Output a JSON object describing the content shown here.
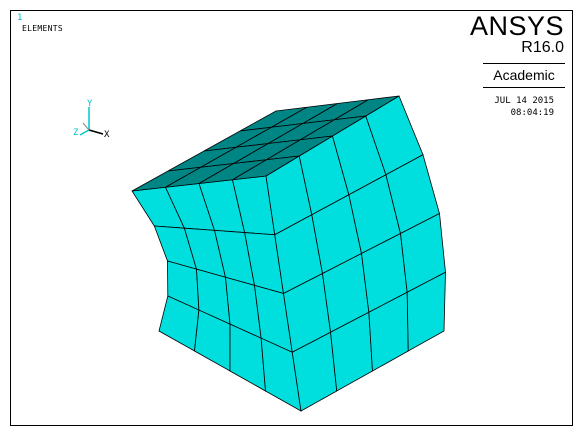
{
  "window": {
    "number": "1",
    "plot_label": "ELEMENTS"
  },
  "legend": {
    "brand": "ANSYS",
    "release": "R16.0",
    "license": "Academic",
    "date": "JUL 14 2015",
    "time": "08:04:19"
  },
  "triad": {
    "y_label": "Y",
    "z_label": "Z",
    "x_label": "X"
  },
  "colors": {
    "element_fill": "#00dede",
    "element_top": "#008585",
    "element_edge": "#000000",
    "triad_y": "#00c8c8",
    "triad_z": "#00c8c8"
  },
  "mesh": {
    "divisions": 4
  }
}
